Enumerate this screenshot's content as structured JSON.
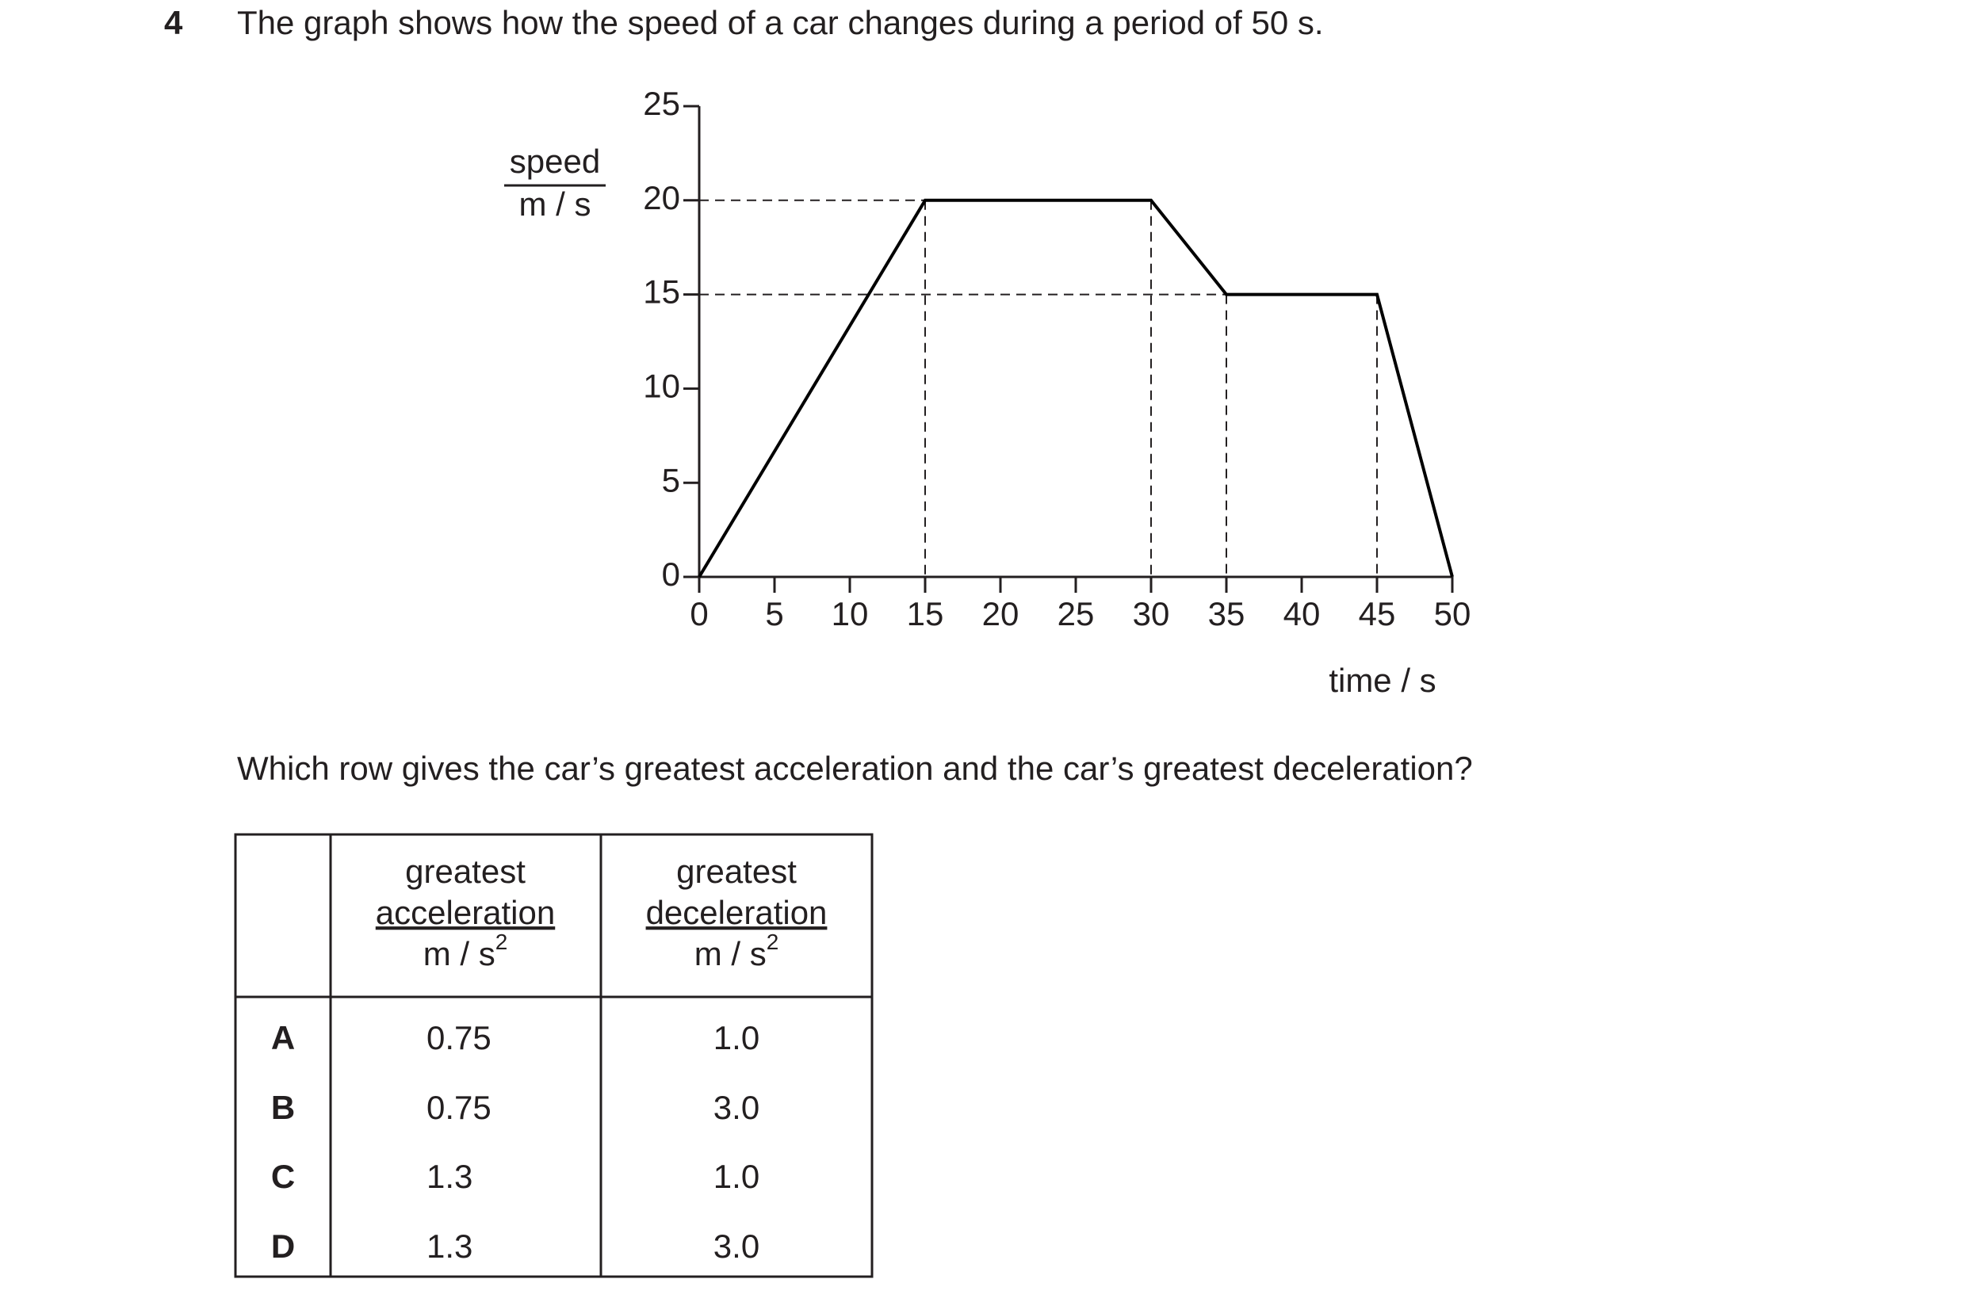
{
  "question": {
    "number": "4",
    "text": "The graph shows how the speed of a car changes during a period of 50 s.",
    "prompt": "Which row gives the car’s greatest acceleration and the car’s greatest deceleration?"
  },
  "chart_data": {
    "type": "line",
    "y_label": "speed",
    "y_unit": "m / s",
    "x_label": "time / s",
    "x": [
      0,
      15,
      30,
      35,
      45,
      50
    ],
    "values": [
      0,
      20,
      20,
      15,
      15,
      0
    ],
    "color": "#000000",
    "xlim": [
      0,
      50
    ],
    "xticks": [
      0,
      5,
      10,
      15,
      20,
      25,
      30,
      35,
      40,
      45,
      50
    ],
    "ylim": [
      0,
      25
    ],
    "yticks": [
      0,
      5,
      10,
      15,
      20,
      25
    ],
    "guides": true
  },
  "table": {
    "header": [
      {
        "title": "greatest",
        "measure": "acceleration",
        "unit": "m / s",
        "exponent": "2"
      },
      {
        "title": "greatest",
        "measure": "deceleration",
        "unit": "m / s",
        "exponent": "2"
      }
    ],
    "rows": [
      [
        "A",
        "0.75",
        "1.0"
      ],
      [
        "B",
        "0.75",
        "3.0"
      ],
      [
        "C",
        "1.3",
        "1.0"
      ],
      [
        "D",
        "1.3",
        "3.0"
      ]
    ]
  }
}
